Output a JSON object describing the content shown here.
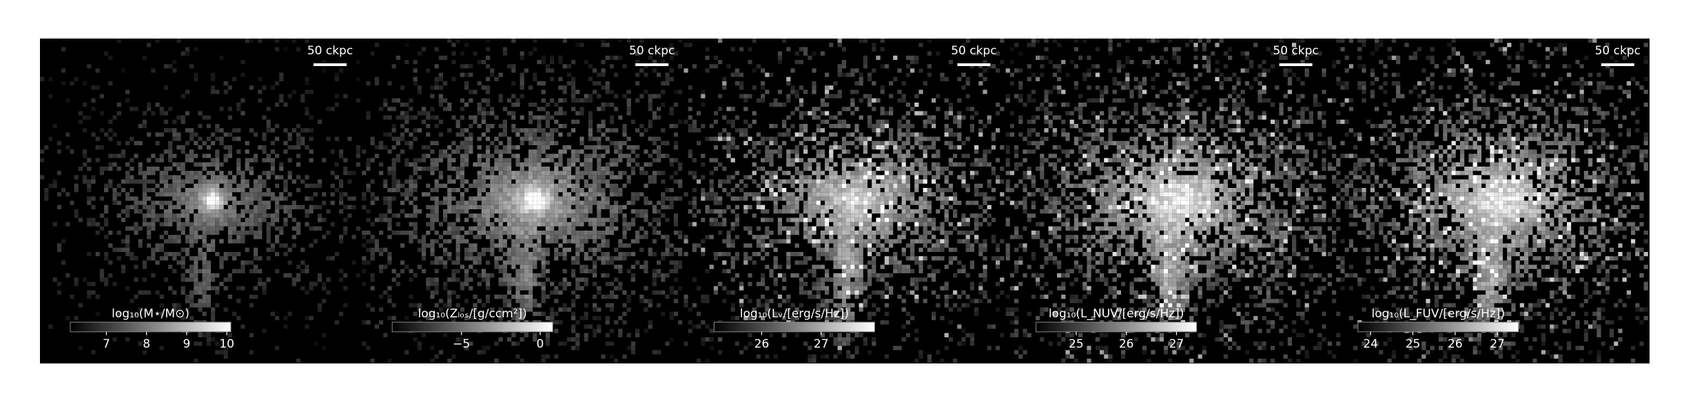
{
  "panels": [
    {
      "scalebar": "50 ckpc",
      "colorbar": {
        "label": "log₁₀(M⋆/M⊙)",
        "lim": [
          6.1,
          10.1
        ],
        "ticks": [
          7,
          8,
          9,
          10
        ]
      }
    },
    {
      "scalebar": "50 ckpc",
      "colorbar": {
        "label": "log₁₀(Zₗₒₛ/[g/ccm²])",
        "lim": [
          -9.4,
          0.8
        ],
        "ticks": [
          {
            "value": -5,
            "label": "−5"
          },
          0
        ]
      }
    },
    {
      "scalebar": "50 ckpc",
      "colorbar": {
        "label": "log₁₀(Lᵥ/[erg/s/Hz])",
        "lim": [
          25.2,
          27.9
        ],
        "ticks": [
          26,
          27
        ]
      }
    },
    {
      "scalebar": "50 ckpc",
      "colorbar": {
        "label": "log₁₀(L_NUV/[erg/s/Hz])",
        "lim": [
          24.2,
          27.4
        ],
        "ticks": [
          25,
          26,
          27
        ]
      }
    },
    {
      "scalebar": "50 ckpc",
      "colorbar": {
        "label": "log₁₀(L_FUV/[erg/s/Hz])",
        "lim": [
          23.7,
          27.5
        ],
        "ticks": [
          24,
          25,
          26,
          27
        ]
      }
    }
  ]
}
